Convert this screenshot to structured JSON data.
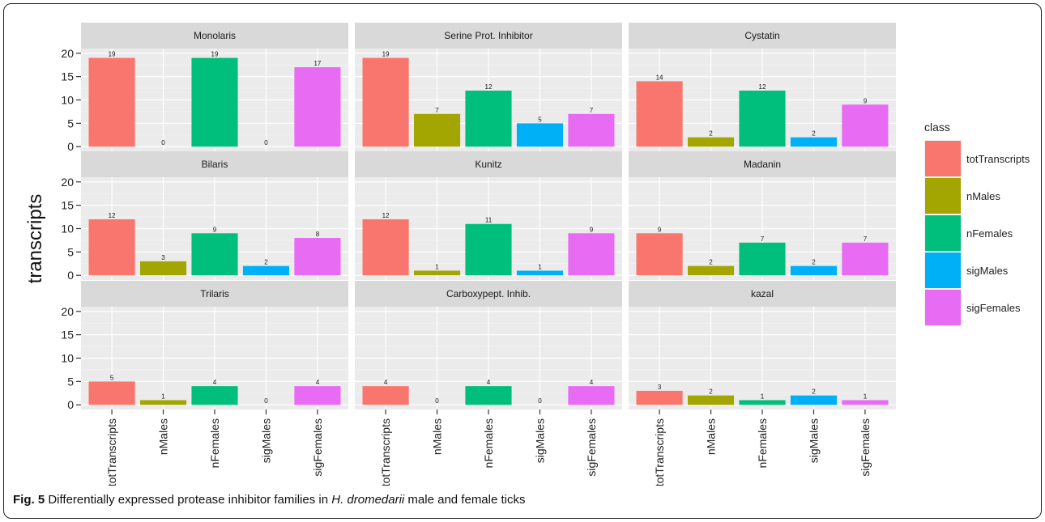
{
  "chart_data": {
    "type": "bar",
    "ylabel": "transcripts",
    "xlabel": "",
    "ylim": [
      0,
      20
    ],
    "yticks": [
      0,
      5,
      10,
      15,
      20
    ],
    "categories": [
      "totTranscripts",
      "nMales",
      "nFemales",
      "sigMales",
      "sigFemales"
    ],
    "legend": {
      "title": "class",
      "position": "right",
      "entries": [
        "totTranscripts",
        "nMales",
        "nFemales",
        "sigMales",
        "sigFemales"
      ]
    },
    "colors": {
      "totTranscripts": "#F8766D",
      "nMales": "#A3A500",
      "nFemales": "#00BF7D",
      "sigMales": "#00B0F6",
      "sigFemales": "#E76BF3"
    },
    "panel_bg": "#EBEBEB",
    "strip_bg": "#D9D9D9",
    "grid": true,
    "panels": [
      {
        "title": "Monolaris",
        "values": [
          19,
          0,
          19,
          0,
          17
        ]
      },
      {
        "title": "Serine Prot. Inhibitor",
        "values": [
          19,
          7,
          12,
          5,
          7
        ]
      },
      {
        "title": "Cystatin",
        "values": [
          14,
          2,
          12,
          2,
          9
        ]
      },
      {
        "title": "Bilaris",
        "values": [
          12,
          3,
          9,
          2,
          8
        ]
      },
      {
        "title": "Kunitz",
        "values": [
          12,
          1,
          11,
          1,
          9
        ]
      },
      {
        "title": "Madanin",
        "values": [
          9,
          2,
          7,
          2,
          7
        ]
      },
      {
        "title": "Trilaris",
        "values": [
          5,
          1,
          4,
          0,
          4
        ]
      },
      {
        "title": "Carboxypept. Inhib.",
        "values": [
          4,
          0,
          4,
          0,
          4
        ]
      },
      {
        "title": "kazal",
        "values": [
          3,
          2,
          1,
          2,
          1
        ]
      }
    ]
  },
  "caption": {
    "label": "Fig. 5",
    "text_before": " Differentially expressed protease inhibitor families in ",
    "species": "H. dromedarii",
    "text_after": " male and female ticks"
  }
}
